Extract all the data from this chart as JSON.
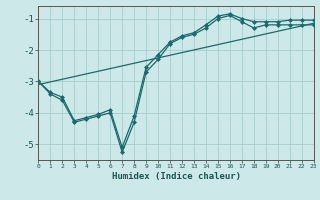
{
  "xlabel": "Humidex (Indice chaleur)",
  "bg_color": "#cce8e8",
  "grid_color": "#aacccc",
  "line_color": "#1a6b6b",
  "x_min": 0,
  "x_max": 23,
  "y_min": -5.5,
  "y_max": -0.6,
  "yticks": [
    -5,
    -4,
    -3,
    -2,
    -1
  ],
  "xticks": [
    0,
    1,
    2,
    3,
    4,
    5,
    6,
    7,
    8,
    9,
    10,
    11,
    12,
    13,
    14,
    15,
    16,
    17,
    18,
    19,
    20,
    21,
    22,
    23
  ],
  "line1_x": [
    0,
    1,
    2,
    3,
    4,
    5,
    6,
    7,
    8,
    9,
    10,
    11,
    12,
    13,
    14,
    15,
    16,
    17,
    18,
    19,
    20,
    21,
    22,
    23
  ],
  "line1_y": [
    -3.0,
    -3.4,
    -3.6,
    -4.3,
    -4.2,
    -4.1,
    -4.0,
    -5.25,
    -4.3,
    -2.7,
    -2.3,
    -1.8,
    -1.6,
    -1.5,
    -1.3,
    -1.0,
    -0.9,
    -1.1,
    -1.3,
    -1.2,
    -1.2,
    -1.2,
    -1.2,
    -1.2
  ],
  "line2_x": [
    0,
    1,
    2,
    3,
    4,
    5,
    6,
    7,
    8,
    9,
    10,
    11,
    12,
    13,
    14,
    15,
    16,
    17,
    18,
    19,
    20,
    21,
    22,
    23
  ],
  "line2_y": [
    -3.0,
    -3.35,
    -3.5,
    -4.25,
    -4.15,
    -4.05,
    -3.9,
    -5.1,
    -4.1,
    -2.55,
    -2.15,
    -1.75,
    -1.55,
    -1.45,
    -1.2,
    -0.92,
    -0.85,
    -1.0,
    -1.1,
    -1.1,
    -1.1,
    -1.05,
    -1.05,
    -1.05
  ],
  "line3_x": [
    0,
    23
  ],
  "line3_y": [
    -3.1,
    -1.15
  ]
}
